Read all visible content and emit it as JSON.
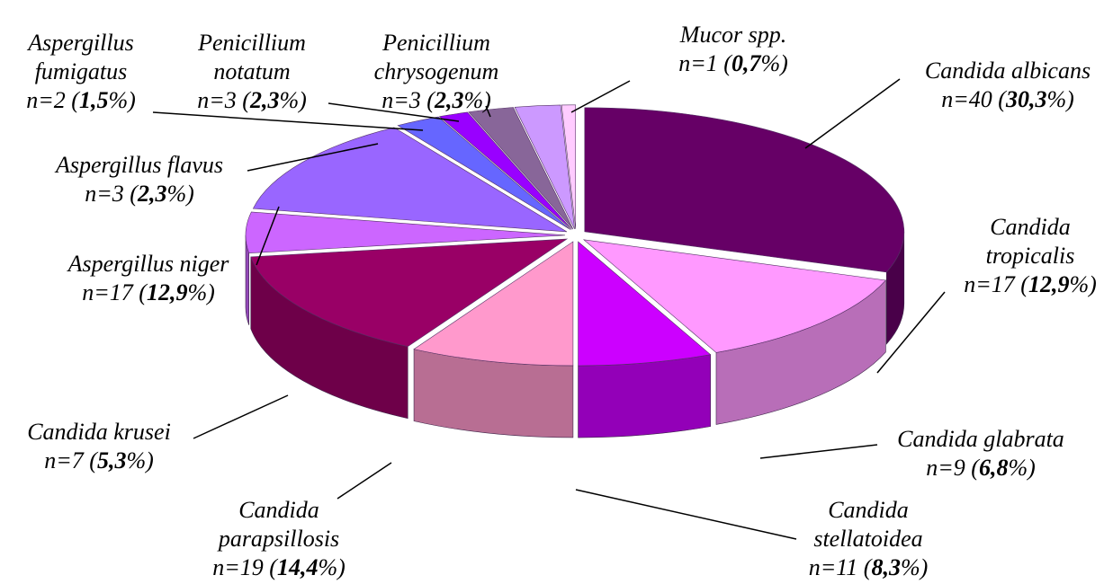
{
  "chart_data": {
    "type": "pie",
    "categories": [
      "Candida albicans",
      "Candida tropicalis",
      "Candida glabrata",
      "Candida stellatoidea",
      "Candida parapsillosis",
      "Candida krusei",
      "Aspergillus niger",
      "Aspergillus flavus",
      "Aspergillus fumigatus",
      "Penicillium notatum",
      "Penicillium chrysogenum",
      "Mucor spp."
    ],
    "values": [
      30.3,
      12.9,
      6.8,
      8.3,
      14.4,
      5.3,
      12.9,
      2.3,
      1.5,
      2.3,
      2.3,
      0.7
    ],
    "value_labels": [
      "n=40 (30,3%)",
      "n=17 (12,9%)",
      "n=9 (6,8%)",
      "n=11 (8,3%)",
      "n=19 (14,4%)",
      "n=7 (5,3%)",
      "n=17 (12,9%)",
      "n=3 (2,3%)",
      "n=2 (1,5%)",
      "n=3 (2,3%)",
      "n=3 (2,3%)",
      "n=1 (0,7%)"
    ],
    "colors": [
      "#660066",
      "#ff99ff",
      "#cc00ff",
      "#ff99cc",
      "#990066",
      "#cc66ff",
      "#9966ff",
      "#6666ff",
      "#9900ff",
      "#886699",
      "#cc99ff",
      "#ffccff"
    ]
  }
}
